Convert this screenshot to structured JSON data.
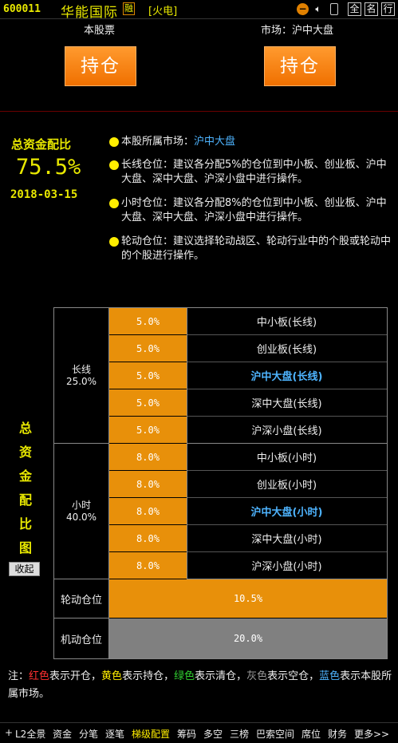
{
  "header": {
    "code": "600011",
    "name": "华能国际",
    "rong": "融",
    "sector": "[火电]",
    "btn_full": "全",
    "btn_name": "名",
    "btn_rank": "行"
  },
  "hold": {
    "stock_label": "本股票",
    "market_label": "市场：沪中大盘",
    "stock_button": "持仓",
    "market_button": "持仓"
  },
  "summary": {
    "title": "总资金配比",
    "value": "75.5%",
    "date": "2018-03-15"
  },
  "bullets": {
    "market_prefix": "本股所属市场：",
    "market_value": "沪中大盘",
    "long": "长线仓位：建议各分配5%的仓位到中小板、创业板、沪中大盘、深中大盘、沪深小盘中进行操作。",
    "hour": "小时仓位：建议各分配8%的仓位到中小板、创业板、沪中大盘、深中大盘、沪深小盘中进行操作。",
    "rotate": "轮动仓位：建议选择轮动战区、轮动行业中的个股或轮动中的个股进行操作。"
  },
  "table": {
    "long_group": {
      "name": "长线",
      "pct": "25.0%"
    },
    "hour_group": {
      "name": "小时",
      "pct": "40.0%"
    },
    "long_rows": [
      {
        "pct": "5.0%",
        "label": "中小板(长线)"
      },
      {
        "pct": "5.0%",
        "label": "创业板(长线)"
      },
      {
        "pct": "5.0%",
        "label": "沪中大盘(长线)"
      },
      {
        "pct": "5.0%",
        "label": "深中大盘(长线)"
      },
      {
        "pct": "5.0%",
        "label": "沪深小盘(长线)"
      }
    ],
    "hour_rows": [
      {
        "pct": "8.0%",
        "label": "中小板(小时)"
      },
      {
        "pct": "8.0%",
        "label": "创业板(小时)"
      },
      {
        "pct": "8.0%",
        "label": "沪中大盘(小时)"
      },
      {
        "pct": "8.0%",
        "label": "深中大盘(小时)"
      },
      {
        "pct": "8.0%",
        "label": "沪深小盘(小时)"
      }
    ],
    "rotate": {
      "label": "轮动仓位",
      "pct": "10.5%"
    },
    "flex": {
      "label": "机动仓位",
      "pct": "20.0%"
    }
  },
  "side": {
    "title_chars": [
      "总",
      "资",
      "金",
      "配",
      "比",
      "图"
    ],
    "collapse": "收起"
  },
  "note": {
    "prefix": "注：",
    "red": "红色",
    "red_text": "表示开仓，",
    "yellow": "黄色",
    "yellow_text": "表示持仓，",
    "green": "绿色",
    "green_text": "表示清仓，",
    "gray": "灰色",
    "gray_text": "表示空仓，",
    "blue": "蓝色",
    "blue_text": "表示本股所属市场。"
  },
  "nav": [
    "+",
    "L2全景",
    "资金",
    "分笔",
    "逐笔",
    "梯级配置",
    "筹码",
    "多空",
    "三榜",
    "巴索空间",
    "席位",
    "财务",
    "更多>>"
  ],
  "colors": {
    "accent": "#e8900a",
    "highlight": "#4eb4ff",
    "title": "#e8e800",
    "gray_cell": "#808080"
  }
}
